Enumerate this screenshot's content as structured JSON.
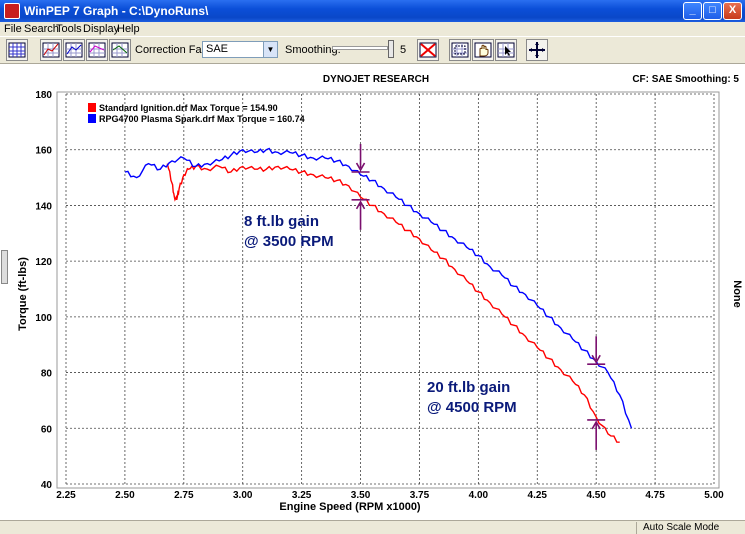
{
  "window": {
    "title": "WinPEP 7    Graph - C:\\DynoRuns\\",
    "minimize": "_",
    "maximize": "□",
    "close": "X"
  },
  "menu": [
    "File",
    "Search",
    "Tools",
    "Display",
    "Help"
  ],
  "toolbar": {
    "correction_label": "Correction Factor:",
    "correction_value": "SAE",
    "smoothing_label": "Smoothing:",
    "smoothing_value": "5",
    "icons": [
      "grid-icon",
      "graph-icon",
      "graph-icon",
      "graph-icon",
      "graph-icon",
      "clear-icon",
      "scale-icon",
      "hand-icon",
      "cursor-icon",
      "crosshair-icon"
    ]
  },
  "graph": {
    "header_title": "DYNOJET RESEARCH",
    "header_right": "CF: SAE  Smoothing: 5",
    "right_axis_label": "None"
  },
  "status": {
    "text": "Auto Scale Mode"
  },
  "chart_data": {
    "type": "line",
    "xlabel": "Engine Speed (RPM x1000)",
    "ylabel": "Torque (ft-lbs)",
    "xlim": [
      2.25,
      5.0
    ],
    "ylim": [
      40,
      180
    ],
    "x_ticks": [
      "2.25",
      "2.50",
      "2.75",
      "3.00",
      "3.25",
      "3.50",
      "3.75",
      "4.00",
      "4.25",
      "4.50",
      "4.75",
      "5.00"
    ],
    "y_ticks": [
      "40",
      "60",
      "80",
      "100",
      "120",
      "140",
      "160",
      "180"
    ],
    "grid": true,
    "legend_position": "top-left",
    "series": [
      {
        "name": "Standard Ignition.drf Max Torque = 154.90",
        "color": "#ff0000",
        "x": [
          2.68,
          2.7,
          2.71,
          2.72,
          2.73,
          2.75,
          2.77,
          2.8,
          2.85,
          2.9,
          2.95,
          3.0,
          3.05,
          3.1,
          3.15,
          3.2,
          3.25,
          3.3,
          3.35,
          3.4,
          3.45,
          3.5,
          3.55,
          3.6,
          3.65,
          3.7,
          3.75,
          3.8,
          3.85,
          3.9,
          3.95,
          4.0,
          4.05,
          4.1,
          4.15,
          4.2,
          4.25,
          4.3,
          4.35,
          4.4,
          4.45,
          4.5,
          4.55,
          4.6
        ],
        "y": [
          155,
          148,
          143,
          142,
          146,
          151,
          153,
          154,
          153,
          154,
          152,
          154,
          153,
          153,
          154,
          153,
          152,
          151,
          150,
          149,
          147,
          143,
          140,
          137,
          134,
          131,
          128,
          124,
          121,
          117,
          113,
          109,
          105,
          101,
          97,
          93,
          89,
          85,
          81,
          77,
          72,
          64,
          58,
          55
        ]
      },
      {
        "name": "RPG4700 Plasma Spark.drf Max Torque = 160.74",
        "color": "#0000ff",
        "x": [
          2.5,
          2.55,
          2.6,
          2.65,
          2.7,
          2.75,
          2.8,
          2.85,
          2.9,
          2.95,
          3.0,
          3.05,
          3.1,
          3.15,
          3.2,
          3.25,
          3.3,
          3.35,
          3.4,
          3.45,
          3.5,
          3.55,
          3.6,
          3.65,
          3.7,
          3.75,
          3.8,
          3.85,
          3.9,
          3.95,
          4.0,
          4.05,
          4.1,
          4.15,
          4.2,
          4.25,
          4.3,
          4.35,
          4.4,
          4.45,
          4.5,
          4.55,
          4.6,
          4.65
        ],
        "y": [
          152,
          150,
          155,
          153,
          156,
          157,
          154,
          155,
          156,
          158,
          160,
          159,
          160,
          159,
          159,
          158,
          157,
          157,
          156,
          154,
          151,
          149,
          146,
          143,
          140,
          137,
          134,
          131,
          128,
          125,
          122,
          118,
          115,
          111,
          108,
          104,
          100,
          96,
          92,
          88,
          84,
          80,
          72,
          60
        ]
      }
    ],
    "annotations": [
      {
        "text": "8 ft.lb gain",
        "line2": "@ 3500 RPM",
        "x": 3.5,
        "y_low": 142,
        "y_high": 152
      },
      {
        "text": "20 ft.lb gain",
        "line2": "@ 4500 RPM",
        "x": 4.5,
        "y_low": 63,
        "y_high": 83
      }
    ]
  }
}
